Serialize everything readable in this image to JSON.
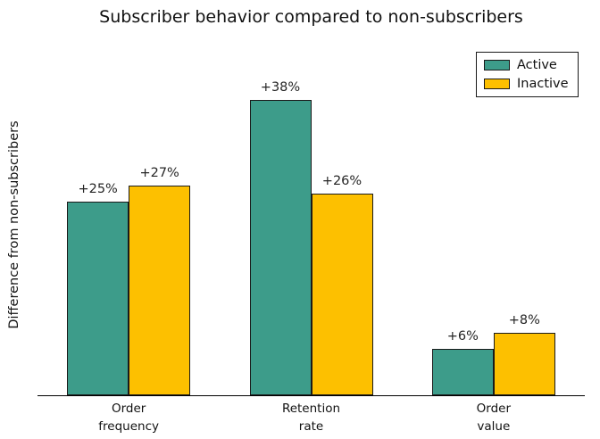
{
  "chart_data": {
    "type": "bar",
    "title": "Subscriber behavior compared to non-subscribers",
    "ylabel": "Difference from non-subscribers",
    "xlabel": "",
    "categories": [
      "Order\nfrequency",
      "Retention\nrate",
      "Order\nvalue"
    ],
    "series": [
      {
        "name": "Active",
        "values": [
          25,
          38,
          6
        ],
        "labels": [
          "+25%",
          "+38%",
          "+6%"
        ],
        "color": "#3d9c8a"
      },
      {
        "name": "Inactive",
        "values": [
          27,
          26,
          8
        ],
        "labels": [
          "+27%",
          "+26%",
          "+8%"
        ],
        "color": "#fdc000"
      }
    ],
    "bar_edge_color": "#1a1a1a",
    "ylim": [
      0,
      44
    ],
    "grid": false,
    "legend_position": "upper right",
    "y_tick_labels_shown": false
  }
}
